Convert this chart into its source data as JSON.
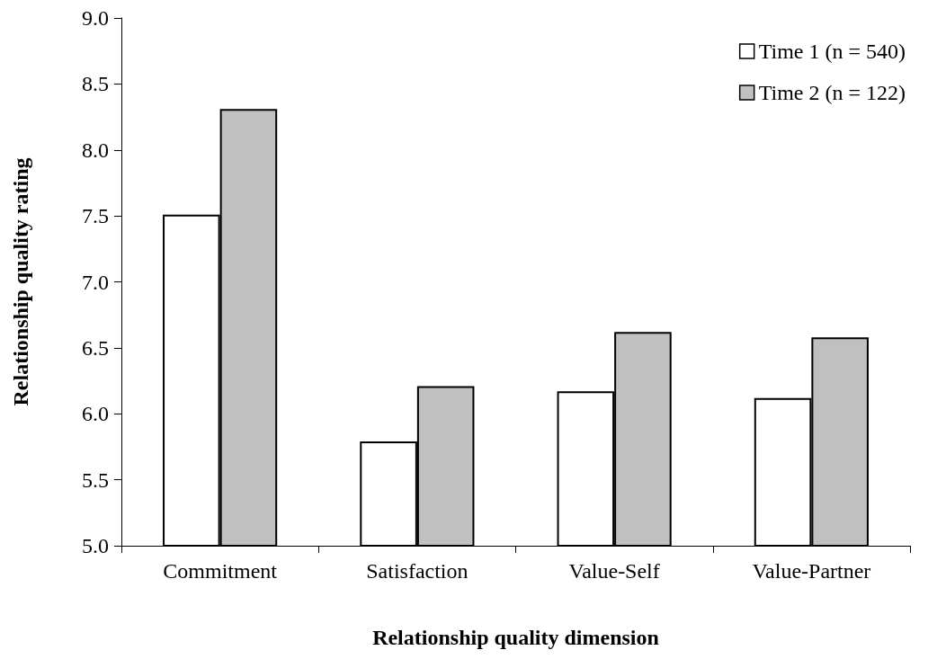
{
  "chart_data": {
    "type": "bar",
    "xlabel": "Relationship quality dimension",
    "ylabel": "Relationship quality rating",
    "categories": [
      "Commitment",
      "Satisfaction",
      "Value-Self",
      "Value-Partner"
    ],
    "series": [
      {
        "name": "Time 1 (n = 540)",
        "color": "#ffffff",
        "values": [
          7.51,
          5.79,
          6.17,
          6.12
        ]
      },
      {
        "name": "Time 2 (n = 122)",
        "color": "#c0c0c0",
        "values": [
          8.31,
          6.21,
          6.62,
          6.58
        ]
      }
    ],
    "ylim": [
      5,
      9
    ],
    "yticks": [
      {
        "value": 5,
        "label": "5.0"
      },
      5.5,
      {
        "value": 6,
        "label": "6.0"
      },
      6.5,
      {
        "value": 7,
        "label": "7.0"
      },
      7.5,
      {
        "value": 8,
        "label": "8.0"
      },
      8.5,
      {
        "value": 9,
        "label": "9.0"
      }
    ],
    "grid": false,
    "legend": "top right"
  }
}
